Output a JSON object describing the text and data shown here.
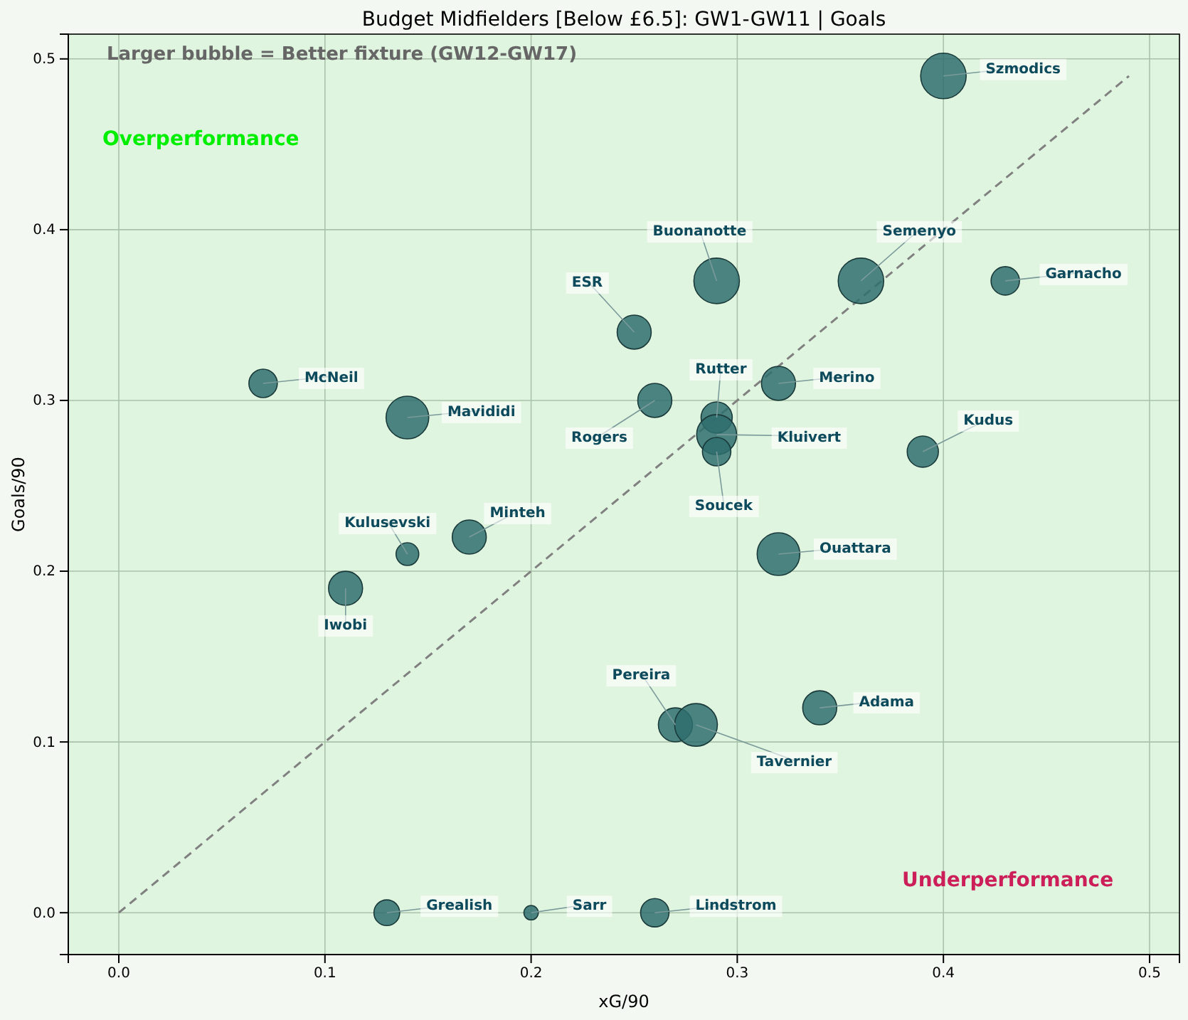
{
  "chart_data": {
    "type": "bubble",
    "title": "Budget Midfielders [Below £6.5]: GW1-GW11 | Goals",
    "xlabel": "xG/90",
    "ylabel": "Goals/90",
    "xlim": [
      -0.0245,
      0.5145
    ],
    "ylim": [
      -0.0245,
      0.5145
    ],
    "xticks": [
      {
        "value": 0,
        "label": "0.0"
      },
      {
        "value": 0.1,
        "label": "0.1"
      },
      {
        "value": 0.2,
        "label": "0.2"
      },
      {
        "value": 0.3,
        "label": "0.3"
      },
      {
        "value": 0.4,
        "label": "0.4"
      },
      {
        "value": 0.5,
        "label": "0.5"
      }
    ],
    "yticks": [
      {
        "value": 0,
        "label": "0.0"
      },
      {
        "value": 0.1,
        "label": "0.1"
      },
      {
        "value": 0.2,
        "label": "0.2"
      },
      {
        "value": 0.3,
        "label": "0.3"
      },
      {
        "value": 0.4,
        "label": "0.4"
      },
      {
        "value": 0.5,
        "label": "0.5"
      }
    ],
    "grid": true,
    "series": [
      {
        "color": "#2f6f6f",
        "x": [
          0.4,
          0.29,
          0.36,
          0.43,
          0.25,
          0.07,
          0.14,
          0.26,
          0.29,
          0.29,
          0.29,
          0.32,
          0.39,
          0.17,
          0.14,
          0.11,
          0.32,
          0.27,
          0.28,
          0.34,
          0.13,
          0.2,
          0.26
        ],
        "values": [
          0.49,
          0.37,
          0.37,
          0.37,
          0.34,
          0.31,
          0.29,
          0.3,
          0.29,
          0.28,
          0.27,
          0.31,
          0.27,
          0.22,
          0.21,
          0.19,
          0.21,
          0.11,
          0.11,
          0.12,
          0,
          0,
          0
        ],
        "sizes": [
          1,
          1,
          1,
          0.39,
          0.56,
          0.39,
          0.88,
          0.56,
          0.47,
          0.77,
          0.39,
          0.56,
          0.47,
          0.56,
          0.25,
          0.56,
          0.88,
          0.56,
          0.88,
          0.56,
          0.32,
          0.1,
          0.39
        ]
      },
      {
        "type": "line",
        "color": "#808080",
        "line_style": "dashed",
        "x": [
          0,
          0.49
        ],
        "values": [
          0,
          0.49
        ]
      }
    ],
    "annotations": [
      "Larger bubble = Better fixture (GW12-GW17)",
      "Overperformance",
      "Underperformance",
      {
        "text": "Szmodics",
        "x": 0.4,
        "y": 0.49
      },
      {
        "text": "Buonanotte",
        "x": 0.29,
        "y": 0.37
      },
      {
        "text": "Semenyo",
        "x": 0.36,
        "y": 0.37
      },
      {
        "text": "Garnacho",
        "x": 0.43,
        "y": 0.37
      },
      {
        "text": "ESR",
        "x": 0.25,
        "y": 0.34
      },
      {
        "text": "McNeil",
        "x": 0.07,
        "y": 0.31
      },
      {
        "text": "Mavididi",
        "x": 0.14,
        "y": 0.29
      },
      {
        "text": "Rogers",
        "x": 0.26,
        "y": 0.3
      },
      {
        "text": "Rutter",
        "x": 0.29,
        "y": 0.29
      },
      {
        "text": "Kluivert",
        "x": 0.29,
        "y": 0.28
      },
      {
        "text": "Soucek",
        "x": 0.29,
        "y": 0.27
      },
      {
        "text": "Merino",
        "x": 0.32,
        "y": 0.31
      },
      {
        "text": "Kudus",
        "x": 0.39,
        "y": 0.27
      },
      {
        "text": "Minteh",
        "x": 0.17,
        "y": 0.22
      },
      {
        "text": "Kulusevski",
        "x": 0.14,
        "y": 0.21
      },
      {
        "text": "Iwobi",
        "x": 0.11,
        "y": 0.19
      },
      {
        "text": "Ouattara",
        "x": 0.32,
        "y": 0.21
      },
      {
        "text": "Pereira",
        "x": 0.27,
        "y": 0.11
      },
      {
        "text": "Tavernier",
        "x": 0.28,
        "y": 0.11
      },
      {
        "text": "Adama",
        "x": 0.34,
        "y": 0.12
      },
      {
        "text": "Grealish",
        "x": 0.13,
        "y": 0
      },
      {
        "text": "Sarr",
        "x": 0.2,
        "y": 0
      },
      {
        "text": "Lindstrom",
        "x": 0.26,
        "y": 0
      }
    ]
  }
}
